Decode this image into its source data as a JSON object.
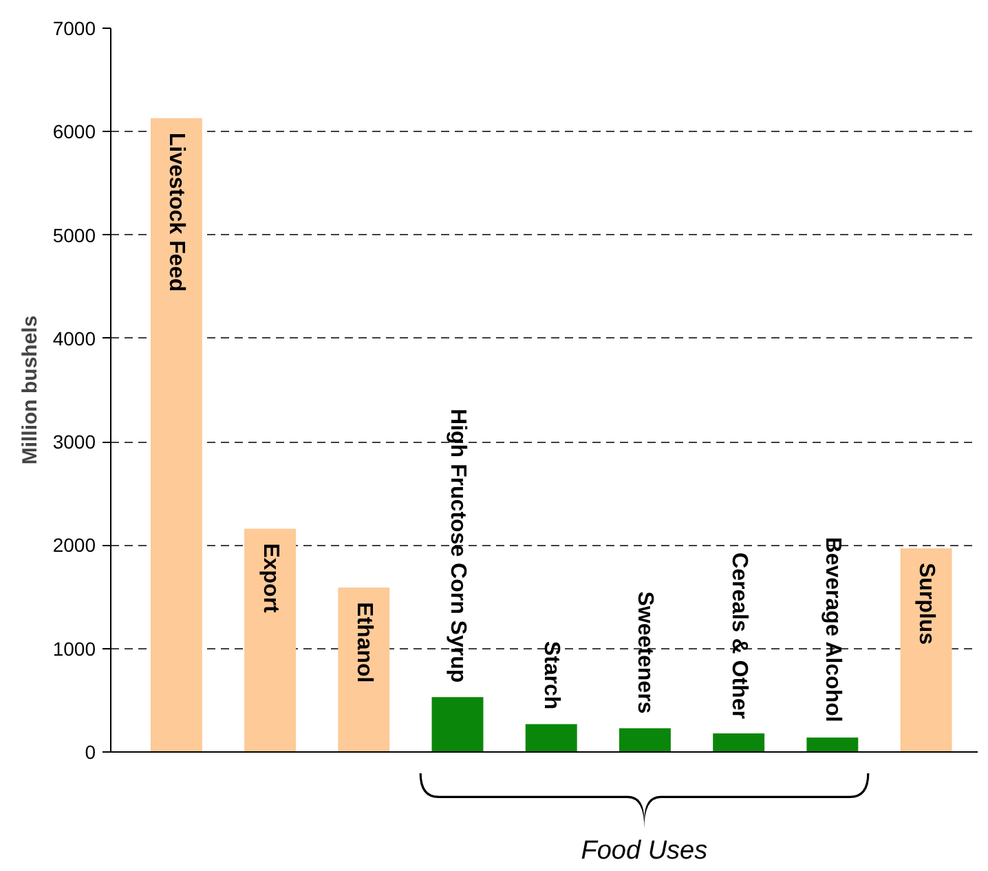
{
  "chart_data": {
    "type": "bar",
    "ylabel": "Million bushels",
    "categories": [
      "Livestock Feed",
      "Export",
      "Ethanol",
      "High Fructose Corn Syrup",
      "Starch",
      "Sweeteners",
      "Cereals & Other",
      "Beverage Alcohol",
      "Surplus"
    ],
    "values": [
      6130,
      2160,
      1590,
      530,
      270,
      230,
      180,
      140,
      1970
    ],
    "colors": [
      "#fdca98",
      "#fdca98",
      "#fdca98",
      "#0a870a",
      "#0a870a",
      "#0a870a",
      "#0a870a",
      "#0a870a",
      "#fdca98"
    ],
    "ylim": [
      0,
      7000
    ],
    "yticks": [
      0,
      1000,
      2000,
      3000,
      4000,
      5000,
      6000,
      7000
    ],
    "grid": "y",
    "tick_labels": "y",
    "annotations": [
      "Food Uses"
    ]
  }
}
